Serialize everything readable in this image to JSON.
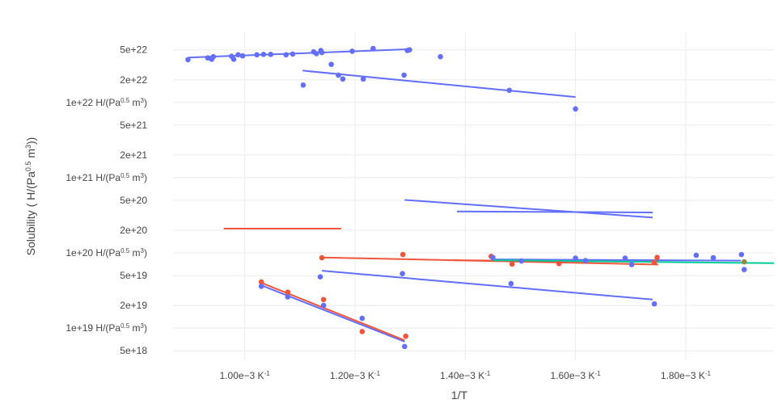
{
  "chart_data": {
    "type": "scatter",
    "xlabel": "1/T",
    "ylabel_text": "Solubility ( H/(Pa",
    "ylabel_sup1": "0.5",
    "ylabel_mid": " m",
    "ylabel_sup2": "3",
    "ylabel_end": "))",
    "log_y": true,
    "grid": true,
    "xlim": [
      0.00087,
      0.00196
    ],
    "ylim_log10": [
      18.5722,
      22.932
    ],
    "x_ticks": [
      {
        "value": 0.001,
        "label": "1.00e−3 K",
        "sup": "-1"
      },
      {
        "value": 0.0012,
        "label": "1.20e−3 K",
        "sup": "-1"
      },
      {
        "value": 0.0014,
        "label": "1.40e−3 K",
        "sup": "-1"
      },
      {
        "value": 0.0016,
        "label": "1.60e−3 K",
        "sup": "-1"
      },
      {
        "value": 0.0018,
        "label": "1.80e−3 K",
        "sup": "-1"
      }
    ],
    "y_ticks": [
      {
        "value": 5e+22,
        "label": "5e+22"
      },
      {
        "value": 2e+22,
        "label": "2e+22"
      },
      {
        "value": 1e+22,
        "label": "1e+22 H/(Pa",
        "sup": "0.5",
        "tail": " m",
        "sup2": "3",
        "end": ")"
      },
      {
        "value": 5e+21,
        "label": "5e+21"
      },
      {
        "value": 2e+21,
        "label": "2e+21"
      },
      {
        "value": 1e+21,
        "label": "1e+21 H/(Pa",
        "sup": "0.5",
        "tail": " m",
        "sup2": "3",
        "end": ")"
      },
      {
        "value": 5e+20,
        "label": "5e+20"
      },
      {
        "value": 2e+20,
        "label": "2e+20"
      },
      {
        "value": 1e+20,
        "label": "1e+20 H/(Pa",
        "sup": "0.5",
        "tail": " m",
        "sup2": "3",
        "end": ")"
      },
      {
        "value": 5e+19,
        "label": "5e+19"
      },
      {
        "value": 2e+19,
        "label": "2e+19"
      },
      {
        "value": 1e+19,
        "label": "1e+19 H/(Pa",
        "sup": "0.5",
        "tail": " m",
        "sup2": "3",
        "end": ")"
      },
      {
        "value": 5e+18,
        "label": "5e+18"
      }
    ],
    "colors": {
      "blue": "#636efa",
      "red": "#ef553b",
      "green": "#00cc96",
      "olive": "#8b8b4b"
    },
    "lines": [
      {
        "color": "blue",
        "points": [
          [
            0.000898,
            3.95e+22
          ],
          [
            0.0013,
            5.1e+22
          ]
        ]
      },
      {
        "color": "blue",
        "points": [
          [
            0.001105,
            2.65e+22
          ],
          [
            0.0016,
            1.18e+22
          ]
        ]
      },
      {
        "color": "blue",
        "points": [
          [
            0.00129,
            5.05e+20
          ],
          [
            0.00174,
            2.95e+20
          ]
        ]
      },
      {
        "color": "blue",
        "points": [
          [
            0.001385,
            3.55e+20
          ],
          [
            0.00174,
            3.45e+20
          ]
        ]
      },
      {
        "color": "red",
        "points": [
          [
            0.000962,
            2.1e+20
          ],
          [
            0.001175,
            2.1e+20
          ]
        ]
      },
      {
        "color": "red",
        "points": [
          [
            0.00114,
            8.7e+19
          ],
          [
            0.00175,
            7e+19
          ]
        ]
      },
      {
        "color": "red",
        "points": [
          [
            0.00138,
            8e+19
          ],
          [
            0.00175,
            7.6e+19
          ]
        ]
      },
      {
        "color": "blue",
        "points": [
          [
            0.00145,
            8.2e+19
          ],
          [
            0.0019,
            7.9e+19
          ]
        ]
      },
      {
        "color": "green",
        "points": [
          [
            0.00145,
            8e+19
          ],
          [
            0.00196,
            7.3e+19
          ]
        ]
      },
      {
        "color": "blue",
        "points": [
          [
            0.00114,
            5.8e+19
          ],
          [
            0.00174,
            2.4e+19
          ]
        ]
      },
      {
        "color": "blue",
        "points": [
          [
            0.00103,
            3.7e+19
          ],
          [
            0.00129,
            6.6e+18
          ]
        ]
      },
      {
        "color": "red",
        "points": [
          [
            0.00103,
            4e+19
          ],
          [
            0.00129,
            6.9e+18
          ]
        ]
      }
    ],
    "points": [
      {
        "color": "blue",
        "x": 0.000897,
        "y": 3.7e+22
      },
      {
        "color": "blue",
        "x": 0.000933,
        "y": 3.9e+22
      },
      {
        "color": "blue",
        "x": 0.00094,
        "y": 3.75e+22
      },
      {
        "color": "blue",
        "x": 0.000943,
        "y": 4.05e+22
      },
      {
        "color": "blue",
        "x": 0.000976,
        "y": 4.1e+22
      },
      {
        "color": "blue",
        "x": 0.00098,
        "y": 3.75e+22
      },
      {
        "color": "blue",
        "x": 0.000988,
        "y": 4.3e+22
      },
      {
        "color": "blue",
        "x": 0.000996,
        "y": 4.15e+22
      },
      {
        "color": "blue",
        "x": 0.001022,
        "y": 4.3e+22
      },
      {
        "color": "blue",
        "x": 0.001034,
        "y": 4.35e+22
      },
      {
        "color": "blue",
        "x": 0.001047,
        "y": 4.35e+22
      },
      {
        "color": "blue",
        "x": 0.001075,
        "y": 4.3e+22
      },
      {
        "color": "blue",
        "x": 0.001087,
        "y": 4.4e+22
      },
      {
        "color": "blue",
        "x": 0.001125,
        "y": 4.7e+22
      },
      {
        "color": "blue",
        "x": 0.00113,
        "y": 4.45e+22
      },
      {
        "color": "blue",
        "x": 0.001138,
        "y": 4.9e+22
      },
      {
        "color": "blue",
        "x": 0.00114,
        "y": 4.6e+22
      },
      {
        "color": "blue",
        "x": 0.001195,
        "y": 4.8e+22
      },
      {
        "color": "blue",
        "x": 0.001233,
        "y": 5.2e+22
      },
      {
        "color": "blue",
        "x": 0.001295,
        "y": 4.9e+22
      },
      {
        "color": "blue",
        "x": 0.001299,
        "y": 5e+22
      },
      {
        "color": "blue",
        "x": 0.001355,
        "y": 4.05e+22
      },
      {
        "color": "blue",
        "x": 0.001106,
        "y": 1.7e+22
      },
      {
        "color": "blue",
        "x": 0.001157,
        "y": 3.2e+22
      },
      {
        "color": "blue",
        "x": 0.00117,
        "y": 2.3e+22
      },
      {
        "color": "blue",
        "x": 0.001178,
        "y": 2.05e+22
      },
      {
        "color": "blue",
        "x": 0.001215,
        "y": 2.05e+22
      },
      {
        "color": "blue",
        "x": 0.001289,
        "y": 2.3e+22
      },
      {
        "color": "blue",
        "x": 0.00148,
        "y": 1.45e+22
      },
      {
        "color": "blue",
        "x": 0.0016,
        "y": 8.2e+21
      },
      {
        "color": "red",
        "x": 0.00114,
        "y": 8.6e+19
      },
      {
        "color": "red",
        "x": 0.001287,
        "y": 9.5e+19
      },
      {
        "color": "red",
        "x": 0.001447,
        "y": 9e+19
      },
      {
        "color": "red",
        "x": 0.001485,
        "y": 7.1e+19
      },
      {
        "color": "red",
        "x": 0.00157,
        "y": 7.2e+19
      },
      {
        "color": "red",
        "x": 0.001743,
        "y": 7.5e+19
      },
      {
        "color": "red",
        "x": 0.001748,
        "y": 8.7e+19
      },
      {
        "color": "blue",
        "x": 0.00145,
        "y": 8.7e+19
      },
      {
        "color": "blue",
        "x": 0.001502,
        "y": 7.8e+19
      },
      {
        "color": "blue",
        "x": 0.0016,
        "y": 8.5e+19
      },
      {
        "color": "blue",
        "x": 0.001618,
        "y": 7.9e+19
      },
      {
        "color": "blue",
        "x": 0.00169,
        "y": 8.5e+19
      },
      {
        "color": "blue",
        "x": 0.001702,
        "y": 7e+19
      },
      {
        "color": "blue",
        "x": 0.001819,
        "y": 9.3e+19
      },
      {
        "color": "blue",
        "x": 0.00185,
        "y": 8.6e+19
      },
      {
        "color": "blue",
        "x": 0.001901,
        "y": 9.5e+19
      },
      {
        "color": "blue",
        "x": 0.001906,
        "y": 6e+19
      },
      {
        "color": "olive",
        "x": 0.001906,
        "y": 7.6e+19
      },
      {
        "color": "blue",
        "x": 0.001137,
        "y": 4.8e+19
      },
      {
        "color": "blue",
        "x": 0.001286,
        "y": 5.3e+19
      },
      {
        "color": "blue",
        "x": 0.001483,
        "y": 3.9e+19
      },
      {
        "color": "blue",
        "x": 0.001743,
        "y": 2.1e+19
      },
      {
        "color": "red",
        "x": 0.00103,
        "y": 4.1e+19
      },
      {
        "color": "red",
        "x": 0.001078,
        "y": 3e+19
      },
      {
        "color": "red",
        "x": 0.001143,
        "y": 2.4e+19
      },
      {
        "color": "red",
        "x": 0.001213,
        "y": 9e+18
      },
      {
        "color": "red",
        "x": 0.001292,
        "y": 7.8e+18
      },
      {
        "color": "blue",
        "x": 0.00103,
        "y": 3.6e+19
      },
      {
        "color": "blue",
        "x": 0.001078,
        "y": 2.6e+19
      },
      {
        "color": "blue",
        "x": 0.001143,
        "y": 2e+19
      },
      {
        "color": "blue",
        "x": 0.001213,
        "y": 1.35e+19
      },
      {
        "color": "blue",
        "x": 0.00129,
        "y": 5.7e+18
      }
    ]
  }
}
